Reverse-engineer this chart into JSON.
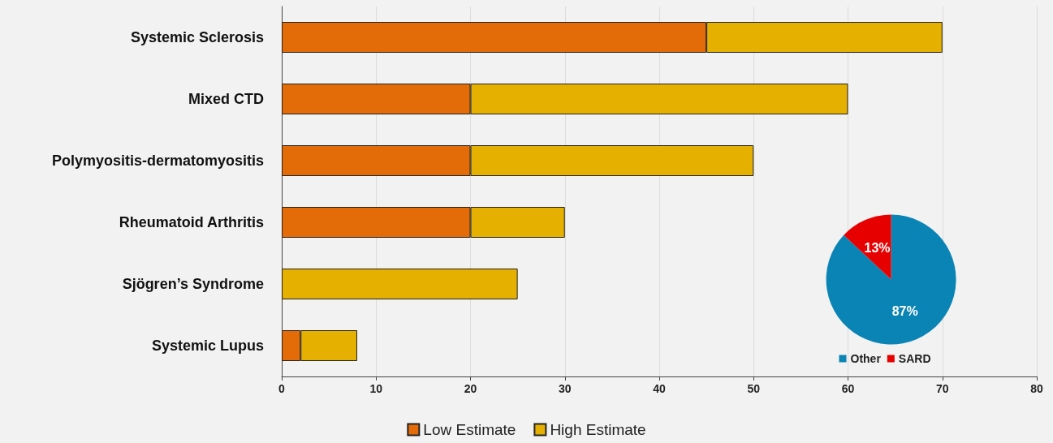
{
  "chart_data": [
    {
      "type": "bar",
      "orientation": "horizontal",
      "stacked": true,
      "categories": [
        "Systemic Sclerosis",
        "Mixed CTD",
        "Polymyositis-dermatomyositis",
        "Rheumatoid Arthritis",
        "Sjögren’s Syndrome",
        "Systemic Lupus"
      ],
      "series": [
        {
          "name": "Low Estimate",
          "color": "#e36c09",
          "values": [
            45,
            20,
            20,
            20,
            null,
            2
          ]
        },
        {
          "name": "High Estimate",
          "color": "#e6b000",
          "values": [
            25,
            40,
            30,
            10,
            25,
            6
          ]
        }
      ],
      "xlim": [
        0,
        80
      ],
      "xticks": [
        0,
        10,
        20,
        30,
        40,
        50,
        60,
        70,
        80
      ],
      "grid": "x",
      "legend": "bottom"
    },
    {
      "type": "pie",
      "categories": [
        "Other",
        "SARD"
      ],
      "values": [
        87,
        13
      ],
      "colors": [
        "#0a84b4",
        "#e60000"
      ],
      "value_labels": [
        "87%",
        "13%"
      ],
      "legend": "bottom"
    }
  ]
}
